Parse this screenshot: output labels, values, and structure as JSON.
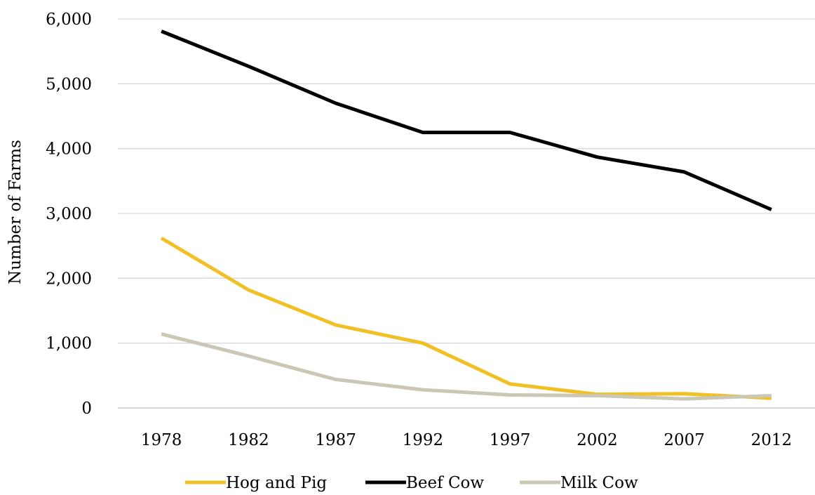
{
  "chart_data": {
    "type": "line",
    "title": "",
    "xlabel": "",
    "ylabel": "Number of Farms",
    "categories": [
      "1978",
      "1982",
      "1987",
      "1992",
      "1997",
      "2002",
      "2007",
      "2012"
    ],
    "ylim": [
      0,
      6000
    ],
    "yticks": [
      0,
      1000,
      2000,
      3000,
      4000,
      5000,
      6000
    ],
    "ytick_labels": [
      "0",
      "1,000",
      "2,000",
      "3,000",
      "4,000",
      "5,000",
      "6,000"
    ],
    "grid": "horizontal",
    "legend_position": "bottom",
    "series": [
      {
        "name": "Hog and Pig",
        "color": "#f0c024",
        "values": [
          2620,
          1820,
          1280,
          1000,
          370,
          210,
          220,
          150
        ]
      },
      {
        "name": "Beef Cow",
        "color": "#000000",
        "values": [
          5810,
          5270,
          4700,
          4250,
          4250,
          3870,
          3640,
          3060
        ]
      },
      {
        "name": "Milk Cow",
        "color": "#cac7b5",
        "values": [
          1140,
          800,
          440,
          280,
          200,
          190,
          140,
          190
        ]
      }
    ]
  }
}
